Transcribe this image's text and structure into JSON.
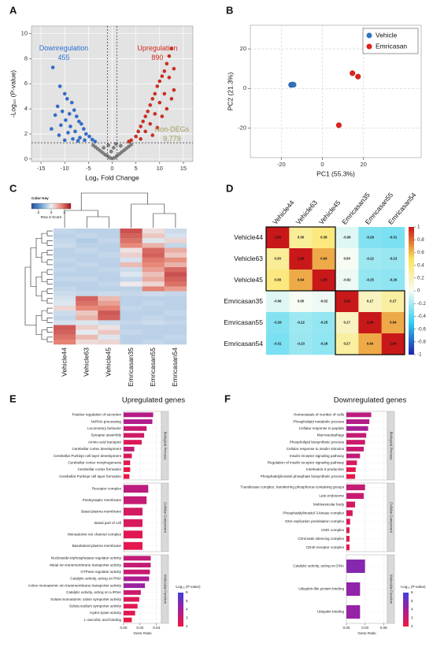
{
  "chart_data": [
    {
      "panel_label": "A",
      "type": "scatter",
      "xlabel": "Log₂ Fold Change",
      "ylabel": "-Log₁₀ (P-value)",
      "xlim": [
        -17,
        17
      ],
      "xticks": [
        -15,
        -10,
        -5,
        0,
        5,
        10,
        15
      ],
      "ylim": [
        -0.2,
        10.6
      ],
      "yticks": [
        0,
        2,
        4,
        6,
        8,
        10
      ],
      "grid": true,
      "grid_color": "#ffffff",
      "background": "#e3e3e3",
      "vlines": [
        -1,
        1
      ],
      "hline": 1.3,
      "series": [
        {
          "color": "#2f6fd3",
          "x": [
            -12.5,
            -11,
            -10,
            -9.5,
            -8.5,
            -11.5,
            -10.5,
            -9,
            -8,
            -7.5,
            -12,
            -9.8,
            -7,
            -6.5,
            -8.8,
            -10.8,
            -6,
            -7.8,
            -5.5,
            -9.3,
            -4.8,
            -6.8,
            -4.2,
            -8.3,
            -11.2,
            -5.8,
            -3.6,
            -7.2,
            -10,
            -12.8
          ],
          "values": [
            7.3,
            5.8,
            5.2,
            4.8,
            4.5,
            4.2,
            3.8,
            3.6,
            3.9,
            3.4,
            3.5,
            3.1,
            3.0,
            2.8,
            2.6,
            2.7,
            2.4,
            2.2,
            2.0,
            2.1,
            1.8,
            1.7,
            1.55,
            1.6,
            1.9,
            1.5,
            1.4,
            1.45,
            1.5,
            2.4
          ]
        },
        {
          "color": "#d42a1e",
          "x": [
            4,
            5,
            5.5,
            6,
            6.5,
            7,
            7.5,
            8,
            8.5,
            9,
            9.5,
            10,
            10.5,
            11,
            11.5,
            12,
            12.5,
            9,
            10,
            11,
            8,
            12,
            13,
            7,
            6,
            10.5,
            11.5,
            13,
            9.5,
            12.5,
            3.5,
            8.5
          ],
          "values": [
            1.5,
            1.8,
            2.2,
            2.6,
            3.0,
            3.4,
            3.8,
            4.3,
            4.8,
            5.2,
            5.8,
            6.2,
            6.6,
            7.0,
            7.6,
            8.2,
            8.8,
            3.6,
            4.5,
            5.2,
            2.8,
            6.5,
            7.2,
            2.2,
            1.6,
            3.4,
            4.0,
            5.5,
            2.5,
            4.8,
            1.4,
            1.9
          ]
        },
        {
          "color": "#7f7f7f",
          "x": [
            0,
            -0.5,
            0.5,
            -1,
            1,
            -1.5,
            1.5,
            -2,
            2,
            -2.5,
            2.5,
            -3,
            3,
            -3.5,
            3.5,
            -4,
            4,
            -0.2,
            0.3,
            -0.8,
            0.8,
            -1.8,
            1.8
          ],
          "values": [
            0.05,
            0.1,
            0.1,
            0.25,
            0.25,
            0.35,
            0.4,
            0.5,
            0.55,
            0.65,
            0.7,
            0.8,
            0.85,
            0.95,
            1.0,
            1.1,
            1.15,
            0.6,
            0.9,
            1.1,
            1.2,
            0.9,
            1.05
          ]
        }
      ],
      "annotations": [
        {
          "text": "Downregulation",
          "value": 455,
          "color": "#2f6fd3"
        },
        {
          "text": "Upregulation",
          "value": 890,
          "color": "#d42a1e"
        },
        {
          "text": "Non-DEGs",
          "value": {
            "value": 9779,
            "label": "9,779"
          },
          "color": "#a39b5e"
        }
      ]
    },
    {
      "panel_label": "B",
      "type": "scatter",
      "xlabel": "PC1 (55.3%)",
      "ylabel": "PC2 (21.3%)",
      "xlim": [
        -35,
        48
      ],
      "xticks": [
        -20,
        0,
        20
      ],
      "ylim": [
        -35,
        32
      ],
      "yticks": [
        -20,
        0,
        20
      ],
      "grid": true,
      "grid_color": "#d6d6d6",
      "background": "#ffffff",
      "legend": "top-right",
      "series": [
        {
          "name": "Vehicle",
          "color": "#2f74c0",
          "x": [
            -15.2,
            -14.6,
            -14.0
          ],
          "values": [
            1.8,
            2.0,
            1.9
          ]
        },
        {
          "name": "Emricasan",
          "color": "#e0201b",
          "x": [
            14.6,
            17.3,
            8
          ],
          "values": [
            7.7,
            6,
            -18.6
          ]
        }
      ]
    },
    {
      "panel_label": "C",
      "type": "heatmap",
      "columns": [
        "Vehicle44",
        "Vehicle63",
        "Vehicle45",
        "Emricasan35",
        "Emricasan55",
        "Emricasan54"
      ],
      "color_key": {
        "title": "Color Key",
        "subtitle": "Row Z-Score",
        "ticks": [
          -2,
          0,
          2
        ]
      },
      "zlim": [
        -3,
        3
      ],
      "colors": [
        "#1f4f99",
        "#6fa3d6",
        "#eef0f2",
        "#e88a7a",
        "#a8101f"
      ],
      "values": [
        [
          -0.5,
          -0.6,
          -0.6,
          2.2,
          0.3,
          -0.4
        ],
        [
          -0.6,
          -0.5,
          -0.6,
          2.0,
          0.6,
          -0.3
        ],
        [
          -0.5,
          -0.7,
          -0.5,
          1.8,
          -0.2,
          0.4
        ],
        [
          -0.4,
          -0.6,
          -0.6,
          1.5,
          0.9,
          -0.5
        ],
        [
          -0.6,
          -0.5,
          -0.6,
          0.2,
          1.9,
          1.0
        ],
        [
          -0.6,
          -0.6,
          -0.5,
          0.5,
          2.0,
          0.6
        ],
        [
          -0.5,
          -0.6,
          -0.6,
          -0.3,
          1.7,
          1.4
        ],
        [
          -0.6,
          -0.5,
          -0.6,
          0.8,
          1.5,
          0.9
        ],
        [
          -0.5,
          -0.6,
          -0.5,
          -0.4,
          1.2,
          1.9
        ],
        [
          -0.6,
          -0.6,
          -0.6,
          -0.2,
          0.7,
          2.2
        ],
        [
          -0.5,
          -0.5,
          -0.6,
          -0.5,
          1.0,
          2.0
        ],
        [
          -0.6,
          -0.6,
          -0.5,
          0.1,
          0.4,
          1.8
        ],
        [
          -0.5,
          -0.6,
          -0.6,
          -0.6,
          1.6,
          1.2
        ],
        [
          -0.4,
          -0.5,
          -0.4,
          -0.5,
          -0.4,
          -0.5
        ],
        [
          -0.3,
          2.0,
          0.8,
          -0.6,
          -0.6,
          -0.6
        ],
        [
          -0.2,
          1.8,
          1.2,
          -0.6,
          -0.5,
          -0.6
        ],
        [
          0.4,
          1.5,
          1.6,
          -0.5,
          -0.6,
          -0.6
        ],
        [
          -0.4,
          0.6,
          2.1,
          -0.6,
          -0.6,
          -0.5
        ],
        [
          -0.5,
          0.9,
          2.0,
          -0.6,
          -0.5,
          -0.6
        ],
        [
          -0.3,
          -0.2,
          -0.4,
          -0.5,
          -0.4,
          -0.5
        ],
        [
          2.1,
          0.5,
          0.2,
          -0.6,
          -0.6,
          -0.6
        ],
        [
          2.0,
          -0.1,
          0.6,
          -0.5,
          -0.6,
          -0.6
        ],
        [
          1.8,
          0.8,
          -0.2,
          -0.6,
          -0.6,
          -0.5
        ],
        [
          1.6,
          0.3,
          0.4,
          -0.6,
          -0.5,
          -0.6
        ]
      ]
    },
    {
      "panel_label": "D",
      "type": "heatmap",
      "rows": [
        "Vehicle44",
        "Vehicle63",
        "Vehicle45",
        "Emricasan35",
        "Emricasan55",
        "Emricasan54"
      ],
      "columns": [
        "Vehicle44",
        "Vehicle63",
        "Vehicle45",
        "Emricasan35",
        "Emricasan55",
        "Emricasan54"
      ],
      "zlim": [
        -1,
        1
      ],
      "zticks": [
        1,
        0.8,
        0.6,
        0.4,
        0.2,
        0,
        -0.2,
        -0.4,
        -0.6,
        -0.8,
        -1
      ],
      "colors": [
        "#2020b0",
        "#2fd0f0",
        "#f6fbf4",
        "#fde35a",
        "#c8181a"
      ],
      "values": [
        [
          1,
          0.3,
          0.38,
          -0.06,
          -0.29,
          -0.31
        ],
        [
          0.3,
          1,
          0.64,
          0,
          -0.22,
          -0.23
        ],
        [
          0.38,
          0.64,
          1,
          -0.02,
          -0.25,
          -0.26
        ],
        [
          -0.06,
          0,
          -0.02,
          1,
          0.17,
          0.27
        ],
        [
          -0.29,
          -0.22,
          -0.25,
          0.17,
          1,
          0.64
        ],
        [
          -0.31,
          -0.23,
          -0.26,
          0.27,
          0.64,
          1
        ]
      ],
      "value_labels": [
        [
          "1.00",
          "0.30",
          "0.38",
          "-0.06",
          "-0.29",
          "-0.31"
        ],
        [
          "0.30",
          "1.00",
          "0.64",
          "0.00",
          "-0.22",
          "-0.23"
        ],
        [
          "0.38",
          "0.64",
          "1.00",
          "-0.02",
          "-0.25",
          "-0.26"
        ],
        [
          "-0.06",
          "0.00",
          "-0.02",
          "1.00",
          "0.17",
          "0.27"
        ],
        [
          "-0.29",
          "-0.22",
          "-0.25",
          "0.17",
          "1.00",
          "0.64"
        ],
        [
          "-0.31",
          "-0.23",
          "-0.26",
          "0.27",
          "0.64",
          "1.00"
        ]
      ]
    },
    {
      "panel_label": "E",
      "type": "bar",
      "orientation": "horizontal",
      "title": "Upregulated genes",
      "xlabel": "Gene Ratio",
      "xlim": [
        0,
        0.046
      ],
      "xticks": [
        {
          "value": 0,
          "label": "0.00"
        },
        0.02,
        0.04
      ],
      "color_scale": {
        "title": "-Log₁₀ (P-value)",
        "lim": [
          2,
          6
        ],
        "ticks": [
          2,
          3,
          4,
          5,
          6
        ],
        "colors": [
          "#f2163c",
          "#a51e9a",
          "#3f3ee0"
        ]
      },
      "groups": [
        {
          "name": "Biological Process",
          "categories": [
            "Positive regulation of secretion",
            "NcRNA processing",
            "Locomotory behavior",
            "Synapse assembly",
            "Amino acid transport",
            "Cerebellar cortex development",
            "Cerebellar Purkinje cell layer development",
            "Cerebellar cortex morphogenesis",
            "Cerebellar cortex formation",
            "Cerebellar Purkinje cell layer formation"
          ],
          "values": [
            0.036,
            0.035,
            0.028,
            0.025,
            0.022,
            0.013,
            0.01,
            0.008,
            0.008,
            0.007
          ],
          "pvalues": [
            3.6,
            3.7,
            3.1,
            2.9,
            2.6,
            3.2,
            2.6,
            2.4,
            2.3,
            2.2
          ]
        },
        {
          "name": "Cellular Component",
          "categories": [
            "Receptor complex",
            "Postsynaptic membrane",
            "Basal plasma membrane",
            "Basal part of cell",
            "Monoatomic ion channel complex",
            "Basolateral plasma membrane"
          ],
          "values": [
            0.03,
            0.028,
            0.023,
            0.023,
            0.023,
            0.023
          ],
          "pvalues": [
            3.4,
            3.2,
            2.8,
            2.7,
            2.5,
            2.4
          ]
        },
        {
          "name": "Molecular Function",
          "categories": [
            "Nucleoside-triphosphatase regulator activity",
            "Metal ion transmembrane transporter activity",
            "GTPase regulator activity",
            "Catalytic activity, acting on RNA",
            "Active monoatomic ion transmembrane transporter activity",
            "Catalytic activity, acting on a tRNA",
            "Solute:monoatomic cation symporter activity",
            "Solute:sodium symporter activity",
            "Hydro-lyase activity",
            "L-ascorbic acid binding"
          ],
          "values": [
            0.033,
            0.033,
            0.032,
            0.031,
            0.026,
            0.021,
            0.019,
            0.017,
            0.014,
            0.01
          ],
          "pvalues": [
            3.3,
            3.2,
            3.1,
            3.8,
            4.2,
            3.0,
            2.6,
            2.5,
            2.4,
            2.2
          ]
        }
      ]
    },
    {
      "panel_label": "F",
      "type": "bar",
      "orientation": "horizontal",
      "title": "Downregulated genes",
      "xlabel": "Gene Ratio",
      "xlim": [
        0,
        0.066
      ],
      "xticks": [
        {
          "value": 0,
          "label": "0.00"
        },
        0.03,
        0.06
      ],
      "color_scale": {
        "title": "-Log₁₀ (P-value)",
        "lim": [
          2,
          6
        ],
        "ticks": [
          2,
          3,
          4,
          5,
          6
        ],
        "colors": [
          "#f2163c",
          "#a51e9a",
          "#3f3ee0"
        ]
      },
      "groups": [
        {
          "name": "Biological Process",
          "categories": [
            "Homeostasis of number of cells",
            "Phospholipid metabolic process",
            "Cellular response to peptide",
            "Macroautophagy",
            "Phospholipid biosynthetic process",
            "Cellular response to insulin stimulus",
            "Insulin receptor signaling pathway",
            "Regulation of insulin receptor signaling pathway",
            "Interleukin-2 production",
            "Phosphatidylinositol phosphate biosynthetic process"
          ],
          "values": [
            0.04,
            0.037,
            0.035,
            0.032,
            0.03,
            0.028,
            0.022,
            0.017,
            0.015,
            0.014
          ],
          "pvalues": [
            3.4,
            3.6,
            3.9,
            3.2,
            3.0,
            3.1,
            3.3,
            2.7,
            2.4,
            2.3
          ]
        },
        {
          "name": "Cellular Component",
          "categories": [
            "Transferase complex, transferring phosphorus-containing groups",
            "Late endosome",
            "Multivesicular body",
            "Phosphatidylinositol 3-kinase complex",
            "DNA replication preinitiation complex",
            "CMG complex",
            "Chromatin silencing complex",
            "CD40 receptor complex"
          ],
          "values": [
            0.03,
            0.028,
            0.014,
            0.01,
            0.006,
            0.005,
            0.005,
            0.005
          ],
          "pvalues": [
            3.2,
            3.1,
            2.8,
            2.7,
            2.5,
            2.4,
            2.3,
            2.2
          ]
        },
        {
          "name": "Molecular Function",
          "categories": [
            "Catalytic activity, acting on DNA",
            "Ubiquitin-like protein binding",
            "Ubiquitin binding"
          ],
          "values": [
            0.03,
            0.022,
            0.022
          ],
          "pvalues": [
            4.6,
            4.4,
            4.3
          ]
        }
      ]
    }
  ]
}
